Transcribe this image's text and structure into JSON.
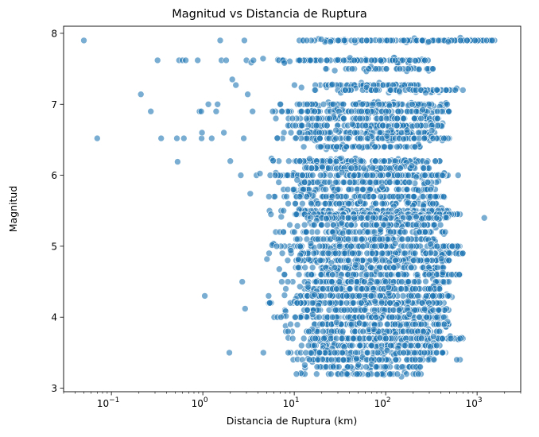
{
  "chart_data": {
    "type": "scatter",
    "title": "Magnitud vs Distancia de Ruptura",
    "xlabel": "Distancia de Ruptura (km)",
    "ylabel": "Magnitud",
    "xscale": "log",
    "xlim": [
      0.03,
      3000
    ],
    "ylim": [
      2.95,
      8.1
    ],
    "grid": false,
    "legend": "none",
    "marker_color": "#1f77b4",
    "marker_edge_color": "#ffffff",
    "marker_alpha": 0.6,
    "x_ticks": [
      {
        "value": 0.1,
        "base": "10",
        "exp": "−1"
      },
      {
        "value": 1,
        "base": "10",
        "exp": "0"
      },
      {
        "value": 10,
        "base": "10",
        "exp": "1"
      },
      {
        "value": 100,
        "base": "10",
        "exp": "2"
      },
      {
        "value": 1000,
        "base": "10",
        "exp": "3"
      }
    ],
    "y_ticks": [
      {
        "value": 3,
        "label": "3"
      },
      {
        "value": 4,
        "label": "4"
      },
      {
        "value": 5,
        "label": "5"
      },
      {
        "value": 6,
        "label": "6"
      },
      {
        "value": 7,
        "label": "7"
      },
      {
        "value": 8,
        "label": "8"
      }
    ],
    "points": [
      [
        0.05,
        7.9
      ],
      [
        0.07,
        6.52
      ],
      [
        0.21,
        7.14
      ],
      [
        0.27,
        6.9
      ],
      [
        0.32,
        7.62
      ],
      [
        0.35,
        6.52
      ],
      [
        0.52,
        6.52
      ],
      [
        0.53,
        6.19
      ],
      [
        0.55,
        7.62
      ],
      [
        0.6,
        7.62
      ],
      [
        0.62,
        6.52
      ],
      [
        0.65,
        7.62
      ],
      [
        0.88,
        7.62
      ],
      [
        0.92,
        6.9
      ],
      [
        0.96,
        6.9
      ],
      [
        0.97,
        6.52
      ],
      [
        0.98,
        6.6
      ],
      [
        1.05,
        4.3
      ],
      [
        1.15,
        7.0
      ],
      [
        1.25,
        6.52
      ],
      [
        1.4,
        6.9
      ],
      [
        1.45,
        7.0
      ],
      [
        1.55,
        7.9
      ],
      [
        1.6,
        7.62
      ],
      [
        1.7,
        6.6
      ],
      [
        1.8,
        7.62
      ],
      [
        1.95,
        3.5
      ],
      [
        2.0,
        6.2
      ],
      [
        2.1,
        7.35
      ],
      [
        2.3,
        7.27
      ],
      [
        2.6,
        6.0
      ],
      [
        2.7,
        4.5
      ],
      [
        2.8,
        6.52
      ],
      [
        2.85,
        7.9
      ],
      [
        2.9,
        4.12
      ],
      [
        3.0,
        7.62
      ],
      [
        3.1,
        7.14
      ],
      [
        3.3,
        5.74
      ],
      [
        3.5,
        6.9
      ],
      [
        4.6,
        3.5
      ],
      [
        1200,
        5.4
      ],
      [
        1300,
        7.9
      ],
      [
        1500,
        7.9
      ],
      [
        1550,
        7.9
      ],
      [
        900,
        7.9
      ],
      [
        1000,
        7.9
      ],
      [
        1100,
        7.9
      ],
      [
        650,
        3.4
      ],
      [
        700,
        3.7
      ],
      [
        600,
        3.4
      ],
      [
        650,
        4.6
      ],
      [
        700,
        4.9
      ],
      [
        650,
        5.45
      ],
      [
        620,
        6.0
      ],
      [
        700,
        7.2
      ]
    ],
    "dense_bands": [
      {
        "y": 7.9,
        "x": [
          10,
          1500
        ],
        "n": 120
      },
      {
        "y": 7.62,
        "x": [
          3.2,
          300
        ],
        "n": 120
      },
      {
        "y": 7.5,
        "x": [
          20,
          350
        ],
        "n": 40
      },
      {
        "y": 7.27,
        "x": [
          10,
          250
        ],
        "n": 70
      },
      {
        "y": 7.2,
        "x": [
          15,
          600
        ],
        "n": 80
      },
      {
        "y": 7.0,
        "x": [
          7,
          500
        ],
        "n": 110
      },
      {
        "y": 6.9,
        "x": [
          5,
          500
        ],
        "n": 110
      },
      {
        "y": 6.8,
        "x": [
          6,
          400
        ],
        "n": 90
      },
      {
        "y": 6.7,
        "x": [
          5,
          450
        ],
        "n": 100
      },
      {
        "y": 6.6,
        "x": [
          6,
          350
        ],
        "n": 90
      },
      {
        "y": 6.52,
        "x": [
          5,
          500
        ],
        "n": 110
      },
      {
        "y": 6.4,
        "x": [
          10,
          250
        ],
        "n": 60
      },
      {
        "y": 6.2,
        "x": [
          5,
          400
        ],
        "n": 110
      },
      {
        "y": 6.1,
        "x": [
          8,
          300
        ],
        "n": 80
      },
      {
        "y": 6.0,
        "x": [
          2.7,
          500
        ],
        "n": 150
      },
      {
        "y": 5.9,
        "x": [
          6,
          400
        ],
        "n": 80
      },
      {
        "y": 5.8,
        "x": [
          5,
          350
        ],
        "n": 80
      },
      {
        "y": 5.7,
        "x": [
          5,
          450
        ],
        "n": 100
      },
      {
        "y": 5.6,
        "x": [
          8,
          400
        ],
        "n": 80
      },
      {
        "y": 5.5,
        "x": [
          5,
          500
        ],
        "n": 90
      },
      {
        "y": 5.45,
        "x": [
          5,
          650
        ],
        "n": 120
      },
      {
        "y": 5.4,
        "x": [
          8,
          500
        ],
        "n": 100
      },
      {
        "y": 5.3,
        "x": [
          8,
          400
        ],
        "n": 90
      },
      {
        "y": 5.2,
        "x": [
          5,
          450
        ],
        "n": 90
      },
      {
        "y": 5.1,
        "x": [
          9,
          350
        ],
        "n": 80
      },
      {
        "y": 5.0,
        "x": [
          5,
          650
        ],
        "n": 110
      },
      {
        "y": 4.9,
        "x": [
          5,
          700
        ],
        "n": 110
      },
      {
        "y": 4.8,
        "x": [
          5,
          500
        ],
        "n": 100
      },
      {
        "y": 4.7,
        "x": [
          5,
          450
        ],
        "n": 90
      },
      {
        "y": 4.6,
        "x": [
          7,
          650
        ],
        "n": 100
      },
      {
        "y": 4.5,
        "x": [
          7,
          500
        ],
        "n": 110
      },
      {
        "y": 4.4,
        "x": [
          6,
          400
        ],
        "n": 110
      },
      {
        "y": 4.3,
        "x": [
          5,
          550
        ],
        "n": 120
      },
      {
        "y": 4.2,
        "x": [
          5,
          450
        ],
        "n": 120
      },
      {
        "y": 4.1,
        "x": [
          7,
          500
        ],
        "n": 110
      },
      {
        "y": 4.0,
        "x": [
          6,
          450
        ],
        "n": 120
      },
      {
        "y": 3.9,
        "x": [
          8,
          500
        ],
        "n": 100
      },
      {
        "y": 3.8,
        "x": [
          8,
          400
        ],
        "n": 100
      },
      {
        "y": 3.7,
        "x": [
          7,
          700
        ],
        "n": 120
      },
      {
        "y": 3.6,
        "x": [
          8,
          400
        ],
        "n": 100
      },
      {
        "y": 3.5,
        "x": [
          8,
          450
        ],
        "n": 100
      },
      {
        "y": 3.4,
        "x": [
          9,
          350
        ],
        "n": 90
      },
      {
        "y": 3.3,
        "x": [
          10,
          250
        ],
        "n": 60
      },
      {
        "y": 3.2,
        "x": [
          10,
          250
        ],
        "n": 50
      }
    ]
  }
}
